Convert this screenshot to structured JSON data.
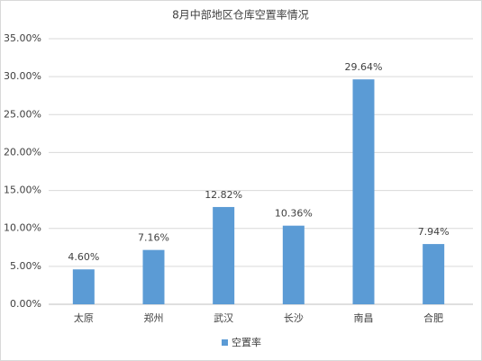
{
  "chart_data": {
    "type": "bar",
    "title": "8月中部地区仓库空置率情况",
    "categories": [
      "太原",
      "郑州",
      "武汉",
      "长沙",
      "南昌",
      "合肥"
    ],
    "series": [
      {
        "name": "空置率",
        "color": "#5b9bd5",
        "values": [
          4.6,
          7.16,
          12.82,
          10.36,
          29.64,
          7.94
        ],
        "value_labels": [
          "4.60%",
          "7.16%",
          "12.82%",
          "10.36%",
          "29.64%",
          "7.94%"
        ]
      }
    ],
    "ylim": [
      0,
      35
    ],
    "yticks": [
      {
        "value": 0,
        "label": "0.00%"
      },
      {
        "value": 5,
        "label": "5.00%"
      },
      {
        "value": 10,
        "label": "10.00%"
      },
      {
        "value": 15,
        "label": "15.00%"
      },
      {
        "value": 20,
        "label": "20.00%"
      },
      {
        "value": 25,
        "label": "25.00%"
      },
      {
        "value": 30,
        "label": "30.00%"
      },
      {
        "value": 35,
        "label": "35.00%"
      }
    ],
    "grid": true,
    "legend": "bottom"
  }
}
